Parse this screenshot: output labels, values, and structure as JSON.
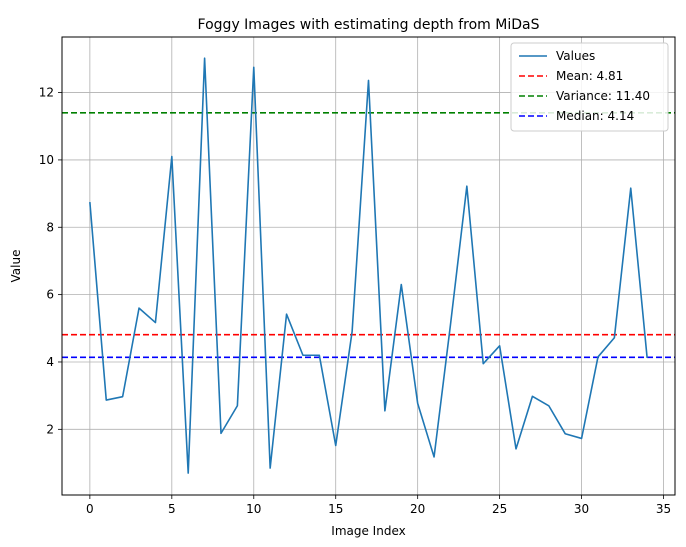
{
  "chart_data": {
    "type": "line",
    "title": "Foggy Images with estimating depth from MiDaS",
    "xlabel": "Image Index",
    "ylabel": "Value",
    "xlim": [
      -1.7,
      35.7
    ],
    "ylim": [
      0.05,
      13.65
    ],
    "xticks": [
      0,
      5,
      10,
      15,
      20,
      25,
      30,
      35
    ],
    "yticks": [
      2,
      4,
      6,
      8,
      10,
      12
    ],
    "grid": true,
    "legend_position": "top-right",
    "series": [
      {
        "name": "Values",
        "color": "#1f77b4",
        "style": "solid",
        "x": [
          0,
          1,
          2,
          3,
          4,
          5,
          6,
          7,
          8,
          9,
          10,
          11,
          12,
          13,
          14,
          15,
          16,
          17,
          18,
          19,
          20,
          21,
          22,
          23,
          24,
          25,
          26,
          27,
          28,
          29,
          30,
          31,
          32,
          33,
          34
        ],
        "y": [
          8.75,
          2.87,
          2.97,
          5.6,
          5.17,
          10.1,
          0.7,
          13.02,
          1.88,
          2.7,
          12.75,
          0.85,
          5.42,
          4.2,
          4.2,
          1.52,
          4.9,
          12.36,
          2.55,
          6.3,
          2.77,
          1.18,
          5.1,
          9.22,
          3.95,
          4.48,
          1.42,
          2.98,
          2.7,
          1.87,
          1.73,
          4.15,
          4.72,
          9.16,
          4.12
        ]
      }
    ],
    "reference_lines": [
      {
        "name": "Mean: 4.81",
        "value": 4.81,
        "color": "#ff0000",
        "style": "dashed"
      },
      {
        "name": "Variance: 11.40",
        "value": 11.4,
        "color": "#008000",
        "style": "dashed"
      },
      {
        "name": "Median: 4.14",
        "value": 4.14,
        "color": "#0000ff",
        "style": "dashed"
      }
    ]
  }
}
